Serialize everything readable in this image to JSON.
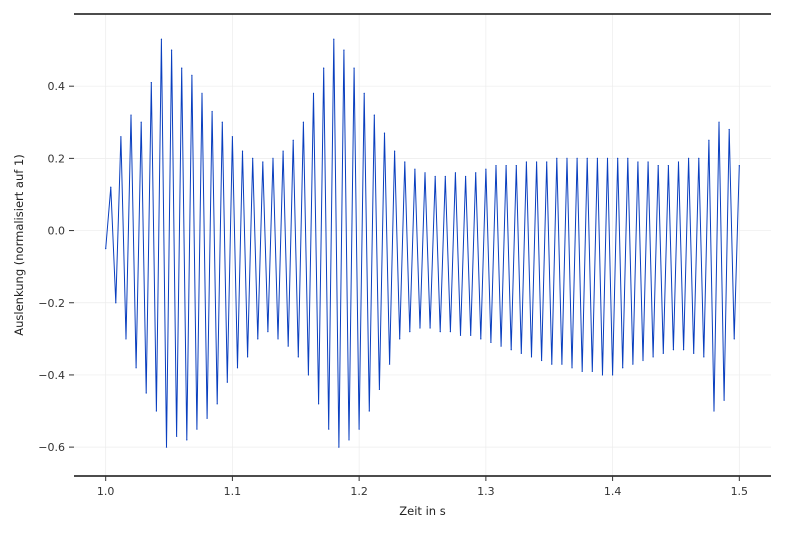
{
  "chart_data": {
    "type": "line",
    "title": "",
    "xlabel": "Zeit in s",
    "ylabel": "Auslenkung (normalisiert auf 1)",
    "xlim": [
      0.975,
      1.525
    ],
    "ylim": [
      -0.68,
      0.6
    ],
    "xticks": [
      1.0,
      1.1,
      1.2,
      1.3,
      1.4,
      1.5
    ],
    "xtick_labels": [
      "1.0",
      "1.1",
      "1.2",
      "1.3",
      "1.4",
      "1.5"
    ],
    "yticks": [
      -0.6,
      -0.4,
      -0.2,
      0.0,
      0.2,
      0.4
    ],
    "ytick_labels": [
      "−0.6",
      "−0.4",
      "−0.2",
      "0.0",
      "0.2",
      "0.4"
    ],
    "grid": true,
    "line_color": "#0a3fbf",
    "series": [
      {
        "x": [
          1.0,
          1.004,
          1.008,
          1.012,
          1.016,
          1.02,
          1.024,
          1.028,
          1.032,
          1.036,
          1.04,
          1.044,
          1.048,
          1.052,
          1.056,
          1.06,
          1.064,
          1.068,
          1.072,
          1.076,
          1.08,
          1.084,
          1.088,
          1.092,
          1.096,
          1.1,
          1.104,
          1.108,
          1.112,
          1.116,
          1.12,
          1.124,
          1.128,
          1.132,
          1.136,
          1.14,
          1.144,
          1.148,
          1.152,
          1.156,
          1.16,
          1.164,
          1.168,
          1.172,
          1.176,
          1.18,
          1.184,
          1.188,
          1.192,
          1.196,
          1.2,
          1.204,
          1.208,
          1.212,
          1.216,
          1.22,
          1.224,
          1.228,
          1.232,
          1.236,
          1.24,
          1.244,
          1.248,
          1.252,
          1.256,
          1.26,
          1.264,
          1.268,
          1.272,
          1.276,
          1.28,
          1.284,
          1.288,
          1.292,
          1.296,
          1.3,
          1.304,
          1.308,
          1.312,
          1.316,
          1.32,
          1.324,
          1.328,
          1.332,
          1.336,
          1.34,
          1.344,
          1.348,
          1.352,
          1.356,
          1.36,
          1.364,
          1.368,
          1.372,
          1.376,
          1.38,
          1.384,
          1.388,
          1.392,
          1.396,
          1.4,
          1.404,
          1.408,
          1.412,
          1.416,
          1.42,
          1.424,
          1.428,
          1.432,
          1.436,
          1.44,
          1.444,
          1.448,
          1.452,
          1.456,
          1.46,
          1.464,
          1.468,
          1.472,
          1.476,
          1.48,
          1.484,
          1.488,
          1.492,
          1.496,
          1.5
        ],
        "y": [
          -0.05,
          0.12,
          -0.2,
          0.26,
          -0.3,
          0.32,
          -0.38,
          0.3,
          -0.45,
          0.41,
          -0.5,
          0.53,
          -0.6,
          0.5,
          -0.57,
          0.45,
          -0.58,
          0.43,
          -0.55,
          0.38,
          -0.52,
          0.33,
          -0.48,
          0.3,
          -0.42,
          0.26,
          -0.38,
          0.22,
          -0.35,
          0.2,
          -0.3,
          0.19,
          -0.28,
          0.2,
          -0.3,
          0.22,
          -0.32,
          0.25,
          -0.35,
          0.3,
          -0.4,
          0.38,
          -0.48,
          0.45,
          -0.55,
          0.53,
          -0.6,
          0.5,
          -0.58,
          0.45,
          -0.55,
          0.38,
          -0.5,
          0.32,
          -0.44,
          0.27,
          -0.37,
          0.22,
          -0.3,
          0.19,
          -0.28,
          0.17,
          -0.27,
          0.16,
          -0.27,
          0.15,
          -0.28,
          0.15,
          -0.28,
          0.16,
          -0.29,
          0.15,
          -0.29,
          0.16,
          -0.3,
          0.17,
          -0.31,
          0.18,
          -0.32,
          0.18,
          -0.33,
          0.18,
          -0.34,
          0.19,
          -0.35,
          0.19,
          -0.36,
          0.19,
          -0.37,
          0.2,
          -0.37,
          0.2,
          -0.38,
          0.2,
          -0.39,
          0.2,
          -0.39,
          0.2,
          -0.4,
          0.2,
          -0.4,
          0.2,
          -0.38,
          0.2,
          -0.37,
          0.19,
          -0.36,
          0.19,
          -0.35,
          0.18,
          -0.34,
          0.18,
          -0.33,
          0.19,
          -0.33,
          0.2,
          -0.34,
          0.2,
          -0.35,
          0.25,
          -0.5,
          0.3,
          -0.47,
          0.28,
          -0.3,
          0.18
        ]
      }
    ]
  }
}
